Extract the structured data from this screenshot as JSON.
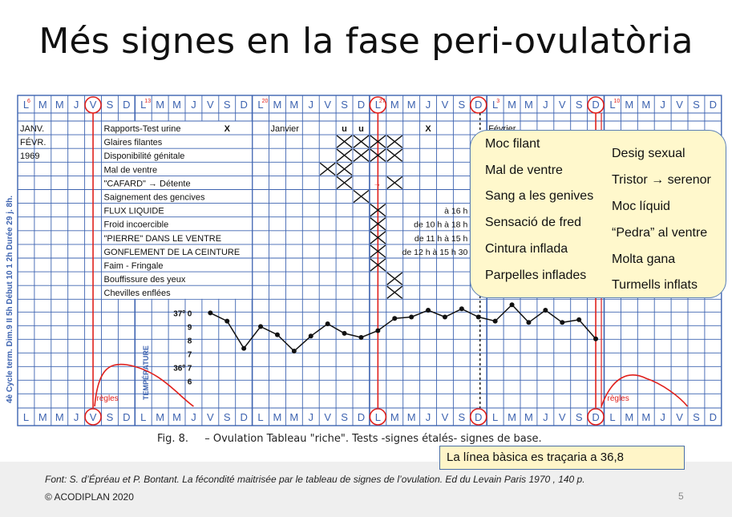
{
  "title": "Més signes en la fase peri-ovulatòria",
  "chart": {
    "days": [
      "L",
      "M",
      "M",
      "J",
      "V",
      "S",
      "D",
      "L",
      "M",
      "M",
      "J",
      "V",
      "S",
      "D",
      "L",
      "M",
      "M",
      "J",
      "V",
      "S",
      "D",
      "L",
      "M",
      "M",
      "J",
      "V",
      "S",
      "D",
      "L",
      "M",
      "M",
      "J",
      "V",
      "S",
      "D",
      "L",
      "M",
      "M",
      "J",
      "V",
      "S",
      "D"
    ],
    "top_superscripts": [
      {
        "col": 0,
        "text": "6"
      },
      {
        "col": 7,
        "text": "13"
      },
      {
        "col": 14,
        "text": "20"
      },
      {
        "col": 21,
        "text": "27"
      },
      {
        "col": 28,
        "text": "3"
      },
      {
        "col": 35,
        "text": "10"
      }
    ],
    "circled_days": [
      4,
      21,
      27,
      34
    ],
    "row_labels": [
      "JANV.",
      "FÉVR.",
      "1969"
    ],
    "sign_rows": [
      "Rapports-Test urine",
      "Glaires filantes",
      "Disponibilité génitale",
      "Mal de ventre",
      "\"CAFARD\"  →  Détente",
      "Saignement des gencives",
      "FLUX LIQUIDE",
      "Froid incoercible",
      "\"PIERRE\" DANS LE VENTRE",
      "GONFLEMENT DE LA CEINTURE",
      "Faim - Fringale",
      "Bouffissure des yeux",
      "Chevilles enflées"
    ],
    "cell_marks": [
      {
        "row": 0,
        "col": 12,
        "text": "X"
      },
      {
        "row": 0,
        "col": 19,
        "text": "u"
      },
      {
        "row": 0,
        "col": 20,
        "text": "u"
      },
      {
        "row": 0,
        "col": 24,
        "text": "X"
      }
    ],
    "month_labels": [
      {
        "col": 15,
        "text": "Janvier"
      },
      {
        "col": 28,
        "text": "Février"
      }
    ],
    "time_notes": [
      {
        "row": 6,
        "text": "à 16 h"
      },
      {
        "row": 7,
        "text": "de 10 h à 18 h"
      },
      {
        "row": 8,
        "text": "de 11 h à 15 h"
      },
      {
        "row": 9,
        "text": "de 12 h à 15 h 30"
      }
    ],
    "crosses": [
      {
        "row": 1,
        "col": 19
      },
      {
        "row": 1,
        "col": 20
      },
      {
        "row": 1,
        "col": 21
      },
      {
        "row": 1,
        "col": 22
      },
      {
        "row": 2,
        "col": 19
      },
      {
        "row": 2,
        "col": 20
      },
      {
        "row": 2,
        "col": 21
      },
      {
        "row": 2,
        "col": 22
      },
      {
        "row": 3,
        "col": 18
      },
      {
        "row": 3,
        "col": 19
      },
      {
        "row": 4,
        "col": 19
      },
      {
        "row": 4,
        "col": 22
      },
      {
        "row": 5,
        "col": 20
      },
      {
        "row": 6,
        "col": 21
      },
      {
        "row": 7,
        "col": 21
      },
      {
        "row": 8,
        "col": 21
      },
      {
        "row": 9,
        "col": 21
      },
      {
        "row": 10,
        "col": 21
      },
      {
        "row": 11,
        "col": 22
      },
      {
        "row": 12,
        "col": 22
      }
    ],
    "side_label_left": "4è Cycle term.   Dim.9 II 5h   Début 10 1 2h   Durée 29 j. 8h.",
    "temperature_label": "TEMPÉRATURE",
    "temp_scale": [
      "37º 0",
      "9",
      "8",
      "7",
      "36º 7",
      "6"
    ],
    "temperature": [
      {
        "day": 11,
        "temp": 36.88
      },
      {
        "day": 12,
        "temp": 36.82
      },
      {
        "day": 13,
        "temp": 36.62
      },
      {
        "day": 14,
        "temp": 36.78
      },
      {
        "day": 15,
        "temp": 36.72
      },
      {
        "day": 16,
        "temp": 36.6
      },
      {
        "day": 17,
        "temp": 36.71
      },
      {
        "day": 18,
        "temp": 36.8
      },
      {
        "day": 19,
        "temp": 36.73
      },
      {
        "day": 20,
        "temp": 36.7
      },
      {
        "day": 21,
        "temp": 36.75
      },
      {
        "day": 22,
        "temp": 36.84
      },
      {
        "day": 23,
        "temp": 36.85
      },
      {
        "day": 24,
        "temp": 36.9
      },
      {
        "day": 25,
        "temp": 36.85
      },
      {
        "day": 26,
        "temp": 36.91
      },
      {
        "day": 27,
        "temp": 36.85
      },
      {
        "day": 28,
        "temp": 36.82
      },
      {
        "day": 29,
        "temp": 36.94
      },
      {
        "day": 30,
        "temp": 36.81
      },
      {
        "day": 31,
        "temp": 36.9
      },
      {
        "day": 32,
        "temp": 36.81
      },
      {
        "day": 33,
        "temp": 36.83
      },
      {
        "day": 34,
        "temp": 36.69
      }
    ],
    "regles_label": "règles"
  },
  "callout": {
    "left_items": [
      "Moc filant",
      "Mal  de ventre",
      "Sang a les genives",
      "Sensació de fred",
      "Cintura inflada",
      "Parpelles inflades"
    ],
    "right_items": [
      "Desig sexual",
      "Tristor → serenor",
      "Moc líquid",
      "“Pedra” al ventre",
      "Molta gana",
      "Turmells inflats"
    ]
  },
  "caption": {
    "fig": "Fig. 8.",
    "text": "–  Ovulation Tableau \"riche\". Tests -signes étalés- signes de base."
  },
  "note": "La línea bàsica es traçaria a 36,8",
  "source": "Font:  S. d’Épréau et P. Bontant. La fécondité maitrisée par le tableau de signes de l’ovulation. Ed du Levain  Paris 1970 , 140 p.",
  "copyright": "© ACODIPLAN 2020",
  "page_number": "5",
  "colors": {
    "grid": "#3d63b0",
    "red": "#e0201c",
    "ink": "#111111"
  }
}
